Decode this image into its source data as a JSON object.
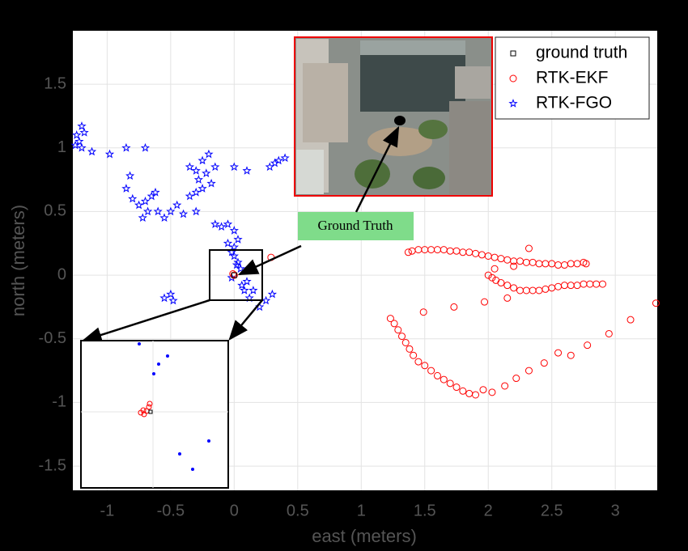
{
  "chart_data": {
    "type": "scatter",
    "xlabel": "east (meters)",
    "ylabel": "north (meters)",
    "xlim": [
      -1.27,
      3.33
    ],
    "ylim": [
      -1.69,
      1.92
    ],
    "xticks": [
      -1,
      -0.5,
      0,
      0.5,
      1,
      1.5,
      2,
      2.5,
      3
    ],
    "yticks": [
      -1.5,
      -1,
      -0.5,
      0,
      0.5,
      1,
      1.5
    ],
    "grid": true,
    "legend": "upper-right",
    "annotation": "Ground Truth",
    "series": [
      {
        "name": "ground truth",
        "color": "#000000",
        "marker": "square",
        "x": [
          0
        ],
        "y": [
          0
        ]
      },
      {
        "name": "RTK-EKF",
        "color": "#ff0000",
        "marker": "circle",
        "x": [
          1.37,
          1.4,
          1.45,
          1.5,
          1.55,
          1.6,
          1.65,
          1.7,
          1.75,
          1.8,
          1.85,
          1.9,
          1.95,
          2.0,
          2.05,
          2.1,
          2.15,
          2.2,
          2.25,
          2.3,
          2.35,
          2.4,
          2.45,
          2.5,
          2.55,
          2.6,
          2.65,
          2.7,
          2.75,
          2.77,
          2.0,
          2.03,
          2.06,
          2.1,
          2.15,
          2.2,
          2.25,
          2.3,
          2.35,
          2.4,
          2.45,
          2.5,
          2.55,
          2.6,
          2.65,
          2.7,
          2.75,
          2.8,
          2.85,
          2.9,
          1.23,
          1.26,
          1.29,
          1.32,
          1.35,
          1.38,
          1.41,
          1.45,
          1.5,
          1.55,
          1.6,
          1.65,
          1.7,
          1.75,
          1.8,
          1.85,
          1.9,
          1.96,
          2.03,
          2.13,
          2.22,
          2.32,
          2.44,
          2.55,
          2.65,
          2.78,
          2.95,
          3.12,
          3.32,
          1.49,
          1.73,
          1.97,
          2.15,
          2.2,
          2.32,
          2.05,
          0.29,
          0.0,
          -0.01
        ],
        "y": [
          0.18,
          0.19,
          0.2,
          0.2,
          0.2,
          0.2,
          0.2,
          0.19,
          0.19,
          0.18,
          0.18,
          0.17,
          0.16,
          0.15,
          0.14,
          0.13,
          0.12,
          0.11,
          0.11,
          0.1,
          0.1,
          0.09,
          0.09,
          0.09,
          0.08,
          0.08,
          0.09,
          0.09,
          0.1,
          0.09,
          0.0,
          -0.02,
          -0.04,
          -0.06,
          -0.08,
          -0.1,
          -0.12,
          -0.12,
          -0.12,
          -0.12,
          -0.11,
          -0.1,
          -0.09,
          -0.08,
          -0.08,
          -0.08,
          -0.07,
          -0.07,
          -0.07,
          -0.07,
          -0.34,
          -0.38,
          -0.43,
          -0.48,
          -0.53,
          -0.58,
          -0.63,
          -0.68,
          -0.71,
          -0.75,
          -0.79,
          -0.82,
          -0.85,
          -0.88,
          -0.91,
          -0.93,
          -0.94,
          -0.9,
          -0.92,
          -0.87,
          -0.81,
          -0.75,
          -0.69,
          -0.61,
          -0.63,
          -0.55,
          -0.46,
          -0.35,
          -0.22,
          -0.29,
          -0.25,
          -0.21,
          -0.18,
          0.07,
          0.21,
          0.05,
          0.14,
          0.0,
          0.01
        ]
      },
      {
        "name": "RTK-FGO",
        "color": "#0000ff",
        "marker": "star",
        "x": [
          -1.24,
          -1.22,
          -1.2,
          -1.18,
          -1.25,
          -1.2,
          -1.12,
          -0.98,
          -0.85,
          -0.7,
          -0.82,
          -0.85,
          -0.8,
          -0.75,
          -0.7,
          -0.65,
          -0.6,
          -0.55,
          -0.5,
          -0.45,
          -0.4,
          -0.72,
          -0.68,
          -0.62,
          -0.35,
          -0.3,
          -0.25,
          -0.28,
          -0.3,
          -0.35,
          -0.25,
          -0.2,
          -0.22,
          -0.18,
          -0.15,
          -0.15,
          -0.1,
          -0.05,
          0.0,
          0.03,
          -0.05,
          -0.3,
          0.0,
          0.1,
          0.28,
          0.35,
          0.4,
          0.32,
          0.0,
          0.02,
          0.05,
          0.1,
          0.08,
          0.12,
          0.2,
          0.25,
          0.3,
          -0.02,
          0.03,
          -0.55,
          -0.5,
          -0.48,
          0.06,
          0.15,
          -0.02,
          0.0
        ],
        "y": [
          1.1,
          1.05,
          1.17,
          1.12,
          1.02,
          1.0,
          0.97,
          0.95,
          1.0,
          1.0,
          0.78,
          0.68,
          0.6,
          0.55,
          0.58,
          0.62,
          0.5,
          0.45,
          0.5,
          0.55,
          0.48,
          0.45,
          0.5,
          0.65,
          0.62,
          0.65,
          0.68,
          0.75,
          0.82,
          0.85,
          0.9,
          0.95,
          0.8,
          0.72,
          0.85,
          0.4,
          0.38,
          0.4,
          0.35,
          0.28,
          0.25,
          0.5,
          0.85,
          0.82,
          0.85,
          0.9,
          0.92,
          0.88,
          0.15,
          0.08,
          0.05,
          -0.05,
          -0.12,
          -0.18,
          -0.25,
          -0.2,
          -0.15,
          -0.02,
          0.1,
          -0.18,
          -0.15,
          -0.2,
          -0.08,
          -0.12,
          0.18,
          0.22
        ]
      }
    ]
  }
}
